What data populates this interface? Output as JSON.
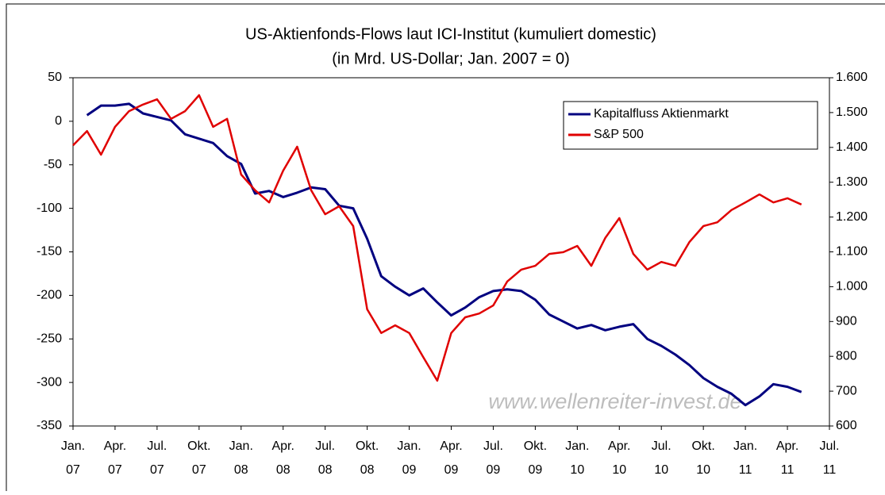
{
  "chart_data": {
    "type": "line",
    "title": "US-Aktienfonds-Flows laut ICI-Institut (kumuliert domestic)",
    "subtitle": "(in Mrd. US-Dollar; Jan. 2007 = 0)",
    "annotation": "www.wellenreiter-invest.de",
    "x": [
      "2007-01",
      "2007-02",
      "2007-03",
      "2007-04",
      "2007-05",
      "2007-06",
      "2007-07",
      "2007-08",
      "2007-09",
      "2007-10",
      "2007-11",
      "2007-12",
      "2008-01",
      "2008-02",
      "2008-03",
      "2008-04",
      "2008-05",
      "2008-06",
      "2008-07",
      "2008-08",
      "2008-09",
      "2008-10",
      "2008-11",
      "2008-12",
      "2009-01",
      "2009-02",
      "2009-03",
      "2009-04",
      "2009-05",
      "2009-06",
      "2009-07",
      "2009-08",
      "2009-09",
      "2009-10",
      "2009-11",
      "2009-12",
      "2010-01",
      "2010-02",
      "2010-03",
      "2010-04",
      "2010-05",
      "2010-06",
      "2010-07",
      "2010-08",
      "2010-09",
      "2010-10",
      "2010-11",
      "2010-12",
      "2011-01",
      "2011-02",
      "2011-03",
      "2011-04",
      "2011-05"
    ],
    "series": [
      {
        "name": "Kapitalfluss Aktienmarkt",
        "color": "#000080",
        "axis": "y",
        "values": [
          null,
          7,
          18,
          18,
          20,
          9,
          5,
          1,
          -15,
          -20,
          -25,
          -40,
          -49,
          -83,
          -80,
          -87,
          -82,
          -76,
          -78,
          -97,
          -100,
          -135,
          -178,
          -190,
          -200,
          -192,
          -208,
          -223,
          -214,
          -202,
          -195,
          -193,
          -195,
          -205,
          -222,
          -230,
          -238,
          -234,
          -240,
          -236,
          -233,
          -250,
          -258,
          -268,
          -280,
          -295,
          -305,
          -313,
          -326,
          -316,
          -302,
          -305,
          -311
        ]
      },
      {
        "name": "S&P 500",
        "color": "#e00000",
        "axis": "y2",
        "values": [
          1406,
          1447,
          1379,
          1459,
          1504,
          1523,
          1538,
          1482,
          1504,
          1550,
          1459,
          1482,
          1322,
          1277,
          1242,
          1333,
          1402,
          1277,
          1208,
          1231,
          1174,
          935,
          867,
          889,
          867,
          798,
          730,
          867,
          912,
          923,
          946,
          1015,
          1049,
          1060,
          1094,
          1099,
          1117,
          1060,
          1140,
          1197,
          1094,
          1049,
          1071,
          1060,
          1128,
          1174,
          1185,
          1220,
          1242,
          1265,
          1242,
          1254,
          1236
        ]
      }
    ],
    "xlim": [
      "2007-01",
      "2011-07"
    ],
    "xticks": [
      {
        "value": "2007-01",
        "label": [
          "Jan.",
          "07"
        ]
      },
      {
        "value": "2007-04",
        "label": [
          "Apr.",
          "07"
        ]
      },
      {
        "value": "2007-07",
        "label": [
          "Jul.",
          "07"
        ]
      },
      {
        "value": "2007-10",
        "label": [
          "Okt.",
          "07"
        ]
      },
      {
        "value": "2008-01",
        "label": [
          "Jan.",
          "08"
        ]
      },
      {
        "value": "2008-04",
        "label": [
          "Apr.",
          "08"
        ]
      },
      {
        "value": "2008-07",
        "label": [
          "Jul.",
          "08"
        ]
      },
      {
        "value": "2008-10",
        "label": [
          "Okt.",
          "08"
        ]
      },
      {
        "value": "2009-01",
        "label": [
          "Jan.",
          "09"
        ]
      },
      {
        "value": "2009-04",
        "label": [
          "Apr.",
          "09"
        ]
      },
      {
        "value": "2009-07",
        "label": [
          "Jul.",
          "09"
        ]
      },
      {
        "value": "2009-10",
        "label": [
          "Okt.",
          "09"
        ]
      },
      {
        "value": "2010-01",
        "label": [
          "Jan.",
          "10"
        ]
      },
      {
        "value": "2010-04",
        "label": [
          "Apr.",
          "10"
        ]
      },
      {
        "value": "2010-07",
        "label": [
          "Jul.",
          "10"
        ]
      },
      {
        "value": "2010-10",
        "label": [
          "Okt.",
          "10"
        ]
      },
      {
        "value": "2011-01",
        "label": [
          "Jan.",
          "11"
        ]
      },
      {
        "value": "2011-04",
        "label": [
          "Apr.",
          "11"
        ]
      },
      {
        "value": "2011-07",
        "label": [
          "Jul.",
          "11"
        ]
      }
    ],
    "ylim": [
      -350,
      50
    ],
    "yticks": [
      -350,
      -300,
      -250,
      -200,
      -150,
      -100,
      -50,
      0,
      50
    ],
    "y2lim": [
      600,
      1600
    ],
    "y2ticks": [
      600,
      700,
      800,
      900,
      {
        "value": 1000,
        "label": "1.000"
      },
      {
        "value": 1100,
        "label": "1.100"
      },
      {
        "value": 1200,
        "label": "1.200"
      },
      {
        "value": 1300,
        "label": "1.300"
      },
      {
        "value": 1400,
        "label": "1.400"
      },
      {
        "value": 1500,
        "label": "1.500"
      },
      {
        "value": 1600,
        "label": "1.600"
      }
    ],
    "grid": false,
    "legend": "upper right"
  }
}
